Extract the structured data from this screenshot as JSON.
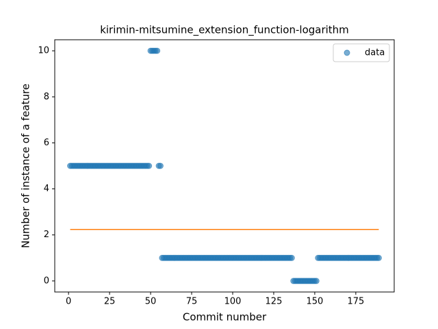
{
  "chart_data": {
    "type": "scatter",
    "title": "kirimin-mitsumine_extension_function-logarithm",
    "xlabel": "Commit number",
    "ylabel": "Number of instance of a feature",
    "xlim": [
      -8.4,
      198.4
    ],
    "ylim": [
      -0.48,
      10.48
    ],
    "xticks": [
      0,
      25,
      50,
      75,
      100,
      125,
      150,
      175
    ],
    "yticks": [
      0,
      2,
      4,
      6,
      8,
      10
    ],
    "legend": "upper right",
    "series": [
      {
        "name": "data",
        "color": "#1f77b4",
        "x": [
          1,
          2,
          3,
          4,
          5,
          6,
          7,
          8,
          9,
          10,
          11,
          12,
          13,
          14,
          15,
          16,
          17,
          18,
          19,
          20,
          21,
          22,
          23,
          24,
          25,
          26,
          27,
          28,
          29,
          30,
          31,
          32,
          33,
          34,
          35,
          36,
          37,
          38,
          39,
          40,
          41,
          42,
          43,
          44,
          45,
          46,
          47,
          48,
          49,
          50,
          51,
          52,
          53,
          54,
          55,
          56,
          57,
          58,
          59,
          60,
          61,
          62,
          63,
          64,
          65,
          66,
          67,
          68,
          69,
          70,
          71,
          72,
          73,
          74,
          75,
          76,
          77,
          78,
          79,
          80,
          81,
          82,
          83,
          84,
          85,
          86,
          87,
          88,
          89,
          90,
          91,
          92,
          93,
          94,
          95,
          96,
          97,
          98,
          99,
          100,
          101,
          102,
          103,
          104,
          105,
          106,
          107,
          108,
          109,
          110,
          111,
          112,
          113,
          114,
          115,
          116,
          117,
          118,
          119,
          120,
          121,
          122,
          123,
          124,
          125,
          126,
          127,
          128,
          129,
          130,
          131,
          132,
          133,
          134,
          135,
          136,
          137,
          138,
          139,
          140,
          141,
          142,
          143,
          144,
          145,
          146,
          147,
          148,
          149,
          150,
          151,
          152,
          153,
          154,
          155,
          156,
          157,
          158,
          159,
          160,
          161,
          162,
          163,
          164,
          165,
          166,
          167,
          168,
          169,
          170,
          171,
          172,
          173,
          174,
          175,
          176,
          177,
          178,
          179,
          180,
          181,
          182,
          183,
          184,
          185,
          186,
          187,
          188,
          189
        ],
        "values": [
          5,
          5,
          5,
          5,
          5,
          5,
          5,
          5,
          5,
          5,
          5,
          5,
          5,
          5,
          5,
          5,
          5,
          5,
          5,
          5,
          5,
          5,
          5,
          5,
          5,
          5,
          5,
          5,
          5,
          5,
          5,
          5,
          5,
          5,
          5,
          5,
          5,
          5,
          5,
          5,
          5,
          5,
          5,
          5,
          5,
          5,
          5,
          5,
          5,
          10,
          10,
          10,
          10,
          10,
          5,
          5,
          1,
          1,
          1,
          1,
          1,
          1,
          1,
          1,
          1,
          1,
          1,
          1,
          1,
          1,
          1,
          1,
          1,
          1,
          1,
          1,
          1,
          1,
          1,
          1,
          1,
          1,
          1,
          1,
          1,
          1,
          1,
          1,
          1,
          1,
          1,
          1,
          1,
          1,
          1,
          1,
          1,
          1,
          1,
          1,
          1,
          1,
          1,
          1,
          1,
          1,
          1,
          1,
          1,
          1,
          1,
          1,
          1,
          1,
          1,
          1,
          1,
          1,
          1,
          1,
          1,
          1,
          1,
          1,
          1,
          1,
          1,
          1,
          1,
          1,
          1,
          1,
          1,
          1,
          1,
          1,
          0,
          0,
          0,
          0,
          0,
          0,
          0,
          0,
          0,
          0,
          0,
          0,
          0,
          0,
          0,
          1,
          1,
          1,
          1,
          1,
          1,
          1,
          1,
          1,
          1,
          1,
          1,
          1,
          1,
          1,
          1,
          1,
          1,
          1,
          1,
          1,
          1,
          1,
          1,
          1,
          1,
          1,
          1,
          1,
          1,
          1,
          1,
          1,
          1,
          1,
          1,
          1,
          1
        ]
      }
    ],
    "line": {
      "color": "#ff7f0e",
      "x": [
        1,
        189
      ],
      "values": [
        2.238,
        2.238
      ]
    }
  }
}
